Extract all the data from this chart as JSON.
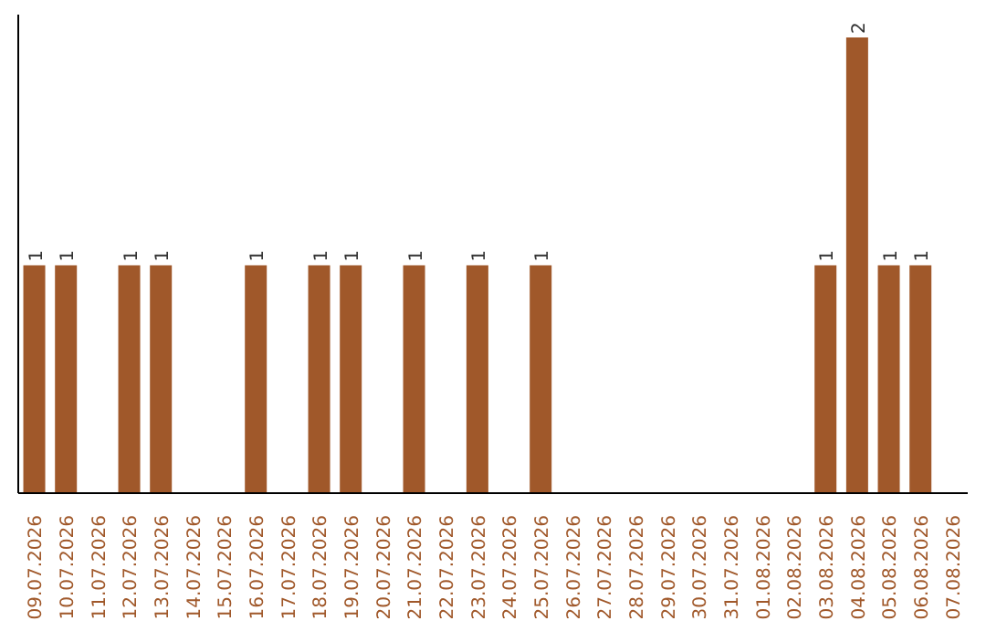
{
  "chart_data": {
    "type": "bar",
    "categories": [
      "09.07.2026",
      "10.07.2026",
      "11.07.2026",
      "12.07.2026",
      "13.07.2026",
      "14.07.2026",
      "15.07.2026",
      "16.07.2026",
      "17.07.2026",
      "18.07.2026",
      "19.07.2026",
      "20.07.2026",
      "21.07.2026",
      "22.07.2026",
      "23.07.2026",
      "24.07.2026",
      "25.07.2026",
      "26.07.2026",
      "27.07.2026",
      "28.07.2026",
      "29.07.2026",
      "30.07.2026",
      "31.07.2026",
      "01.08.2026",
      "02.08.2026",
      "03.08.2026",
      "04.08.2026",
      "05.08.2026",
      "06.08.2026",
      "07.08.2026"
    ],
    "values": [
      1,
      1,
      0,
      1,
      1,
      0,
      0,
      1,
      0,
      1,
      1,
      0,
      1,
      0,
      1,
      0,
      1,
      0,
      0,
      0,
      0,
      0,
      0,
      0,
      0,
      1,
      2,
      1,
      1,
      0
    ],
    "value_labels": [
      "1",
      "1",
      null,
      "1",
      "1",
      null,
      null,
      "1",
      null,
      "1",
      "1",
      null,
      "1",
      null,
      "1",
      null,
      "1",
      null,
      null,
      null,
      null,
      null,
      null,
      null,
      null,
      "1",
      "2",
      "1",
      "1",
      null
    ],
    "color": "#a0582a",
    "grid": false,
    "legend": false
  }
}
